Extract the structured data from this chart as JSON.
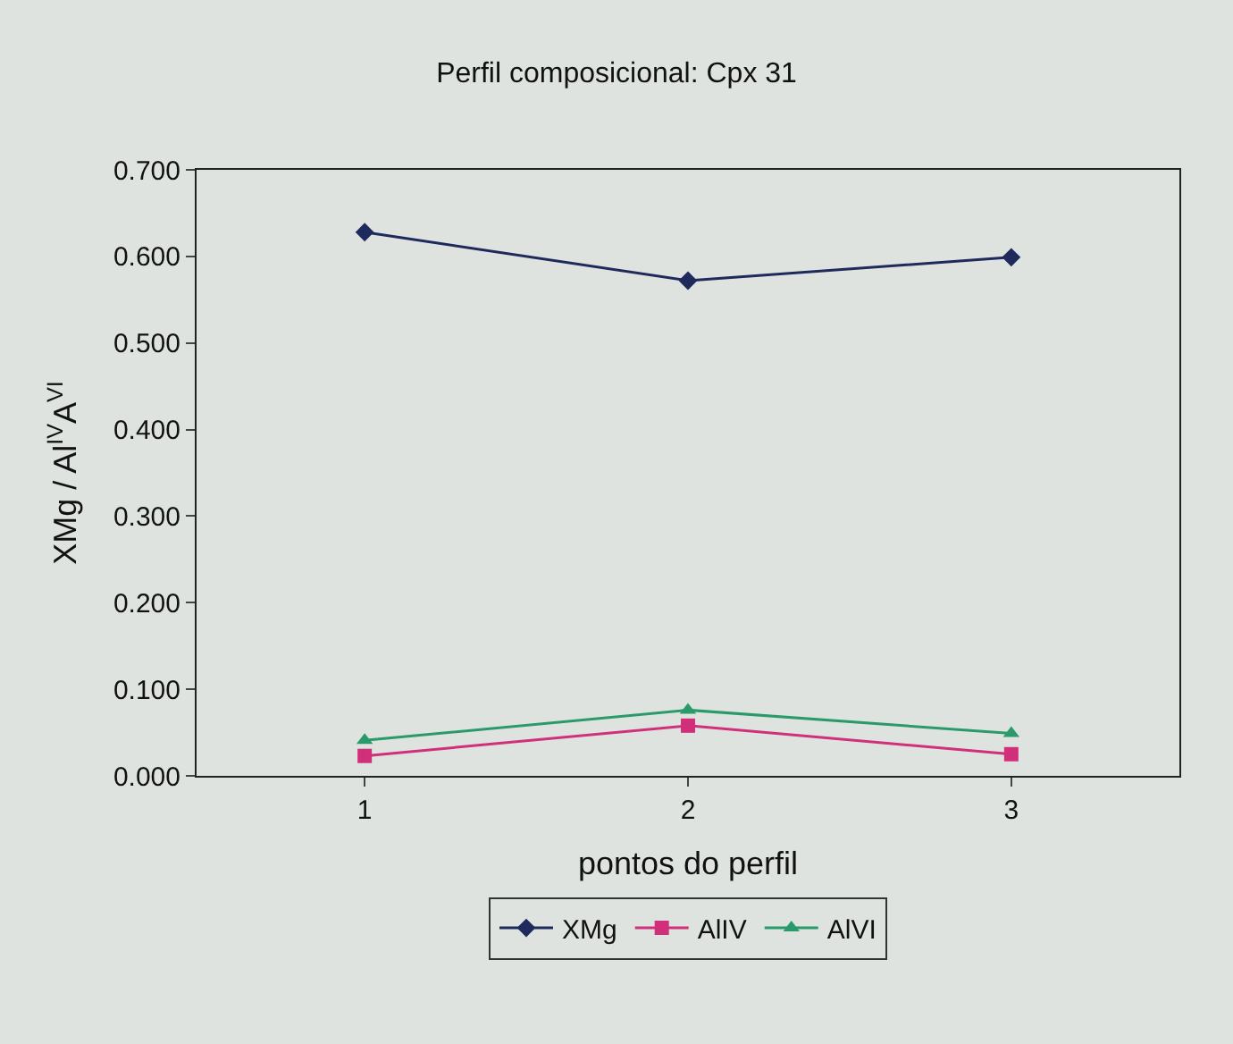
{
  "chart_data": {
    "type": "line",
    "title": "Perfil composicional: Cpx 31",
    "xlabel": "pontos do perfil",
    "ylabel": "XMg / Al$^{IV}$A$^{VI}$",
    "categories": [
      "1",
      "2",
      "3"
    ],
    "series": [
      {
        "name": "XMg",
        "color": "#1f2a5c",
        "marker": "diamond",
        "values": [
          0.628,
          0.572,
          0.599
        ]
      },
      {
        "name": "AlIV",
        "color": "#d0307a",
        "marker": "square",
        "values": [
          0.023,
          0.058,
          0.025
        ]
      },
      {
        "name": "AlVI",
        "color": "#2a9a6a",
        "marker": "triangle",
        "values": [
          0.041,
          0.076,
          0.049
        ]
      }
    ],
    "ylim": [
      0,
      0.7
    ],
    "yticks": [
      {
        "value": 0,
        "label": "0.000"
      },
      {
        "value": 0.1,
        "label": "0.100"
      },
      {
        "value": 0.2,
        "label": "0.200"
      },
      {
        "value": 0.3,
        "label": "0.300"
      },
      {
        "value": 0.4,
        "label": "0.400"
      },
      {
        "value": 0.5,
        "label": "0.500"
      },
      {
        "value": 0.6,
        "label": "0.600"
      },
      {
        "value": 0.7,
        "label": "0.700"
      }
    ],
    "grid": false,
    "legend": "bottom"
  }
}
